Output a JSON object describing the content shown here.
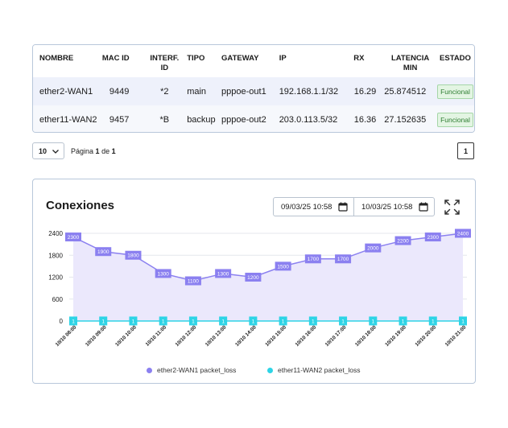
{
  "table": {
    "headers": {
      "nombre": "NOMBRE",
      "mac_id": "MAC ID",
      "interf_id_1": "INTERF.",
      "interf_id_2": "ID",
      "tipo": "TIPO",
      "gateway": "GATEWAY",
      "ip": "IP",
      "rx": "RX",
      "latencia_1": "LATENCIA",
      "latencia_2": "MIN",
      "estado": "ESTADO"
    },
    "rows": [
      {
        "nombre": "ether2-WAN1",
        "mac_id": "9449",
        "interf_id": "*2",
        "tipo": "main",
        "gateway": "pppoe-out1",
        "ip": "192.168.1.1/32",
        "rx": "16.29",
        "latencia": "25.874512",
        "estado": "Funcional"
      },
      {
        "nombre": "ether11-WAN2",
        "mac_id": "9457",
        "interf_id": "*B",
        "tipo": "backup",
        "gateway": "pppoe-out2",
        "ip": "203.0.113.5/32",
        "rx": "16.36",
        "latencia": "27.152635",
        "estado": "Funcional"
      }
    ]
  },
  "pager": {
    "page_size": "10",
    "label_prefix": "Página",
    "current": "1",
    "label_mid": "de",
    "total": "1",
    "page_button": "1"
  },
  "chart_card": {
    "title": "Conexiones",
    "date_from": "09/03/25 10:58",
    "date_to": "10/03/25 10:58"
  },
  "chart_data": {
    "type": "area",
    "x": [
      "10/10 08:00",
      "10/10 09:00",
      "10/10 10:00",
      "10/10 11:00",
      "10/10 12:00",
      "10/10 13:00",
      "10/10 14:00",
      "10/10 15:00",
      "10/10 16:00",
      "10/10 17:00",
      "10/10 18:00",
      "10/10 19:00",
      "10/10 20:00",
      "10/10 21:00"
    ],
    "yticks": [
      0,
      600,
      1200,
      1800,
      2400
    ],
    "ylim": [
      0,
      2400
    ],
    "grid": true,
    "legend_position": "bottom",
    "series": [
      {
        "name": "ether2-WAN1 packet_loss",
        "color": "#8b80f0",
        "fill": "#ebe8fc",
        "values": [
          2300,
          1900,
          1800,
          1300,
          1100,
          1300,
          1200,
          1500,
          1700,
          1700,
          2000,
          2200,
          2300,
          2400
        ]
      },
      {
        "name": "ether11-WAN2 packet_loss",
        "color": "#2ed4e6",
        "values": [
          1,
          1,
          1,
          1,
          1,
          1,
          1,
          1,
          1,
          1,
          1,
          1,
          1,
          1
        ]
      }
    ]
  },
  "icons": {
    "chevron": "chevron-down-icon",
    "calendar": "calendar-icon",
    "expand": "expand-icon"
  }
}
